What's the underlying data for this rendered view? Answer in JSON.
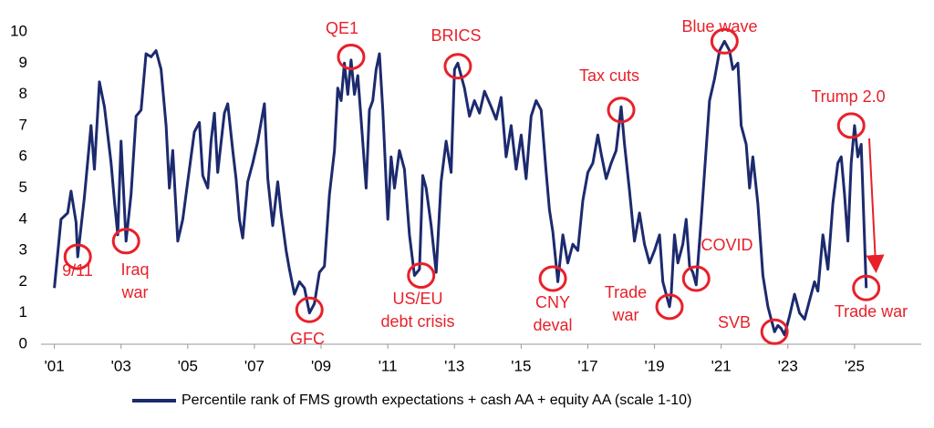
{
  "chart_data": {
    "type": "line",
    "x": [
      2001.0,
      2001.2,
      2001.4,
      2001.5,
      2001.65,
      2001.7,
      2001.9,
      2002.1,
      2002.2,
      2002.35,
      2002.5,
      2002.7,
      2002.8,
      2002.9,
      2003.0,
      2003.15,
      2003.3,
      2003.45,
      2003.6,
      2003.75,
      2003.9,
      2004.05,
      2004.2,
      2004.35,
      2004.45,
      2004.55,
      2004.7,
      2004.85,
      2005.0,
      2005.2,
      2005.35,
      2005.45,
      2005.6,
      2005.7,
      2005.8,
      2005.9,
      2006.1,
      2006.2,
      2006.35,
      2006.45,
      2006.55,
      2006.65,
      2006.8,
      2006.95,
      2007.1,
      2007.3,
      2007.4,
      2007.55,
      2007.7,
      2007.8,
      2007.95,
      2008.05,
      2008.2,
      2008.35,
      2008.5,
      2008.65,
      2008.8,
      2008.95,
      2009.1,
      2009.25,
      2009.4,
      2009.5,
      2009.6,
      2009.7,
      2009.8,
      2009.9,
      2010.0,
      2010.1,
      2010.2,
      2010.35,
      2010.45,
      2010.55,
      2010.65,
      2010.75,
      2010.85,
      2011.0,
      2011.1,
      2011.2,
      2011.35,
      2011.5,
      2011.65,
      2011.8,
      2011.95,
      2012.05,
      2012.15,
      2012.3,
      2012.45,
      2012.6,
      2012.75,
      2012.9,
      2013.0,
      2013.1,
      2013.3,
      2013.45,
      2013.6,
      2013.75,
      2013.9,
      2014.1,
      2014.25,
      2014.4,
      2014.55,
      2014.7,
      2014.85,
      2015.0,
      2015.15,
      2015.3,
      2015.45,
      2015.6,
      2015.75,
      2015.85,
      2015.95,
      2016.1,
      2016.25,
      2016.4,
      2016.55,
      2016.7,
      2016.85,
      2017.0,
      2017.15,
      2017.3,
      2017.4,
      2017.55,
      2017.7,
      2017.85,
      2018.0,
      2018.1,
      2018.25,
      2018.4,
      2018.55,
      2018.7,
      2018.85,
      2019.0,
      2019.15,
      2019.25,
      2019.45,
      2019.5,
      2019.6,
      2019.7,
      2019.85,
      2019.95,
      2020.05,
      2020.15,
      2020.25,
      2020.4,
      2020.5,
      2020.65,
      2020.8,
      2020.95,
      2021.1,
      2021.25,
      2021.35,
      2021.5,
      2021.6,
      2021.75,
      2021.85,
      2021.95,
      2022.1,
      2022.25,
      2022.4,
      2022.5,
      2022.6,
      2022.7,
      2022.8,
      2022.9,
      2023.05,
      2023.2,
      2023.35,
      2023.5,
      2023.65,
      2023.8,
      2023.9,
      2024.05,
      2024.2,
      2024.35,
      2024.5,
      2024.6,
      2024.7,
      2024.8,
      2024.9,
      2025.0,
      2025.1,
      2025.2,
      2025.35
    ],
    "series": [
      {
        "name": "Percentile rank of FMS growth expectations + cash AA + equity AA (scale 1-10)",
        "color": "#1c2a6e",
        "values": [
          1.8,
          4.0,
          4.2,
          4.9,
          3.9,
          2.8,
          4.7,
          7.0,
          5.6,
          8.4,
          7.6,
          5.8,
          4.6,
          3.5,
          6.5,
          3.3,
          4.8,
          7.3,
          7.5,
          9.3,
          9.2,
          9.4,
          8.8,
          7.0,
          5.0,
          6.2,
          3.3,
          4.0,
          5.2,
          6.8,
          7.1,
          5.4,
          5.0,
          6.5,
          7.4,
          5.5,
          7.4,
          7.7,
          6.2,
          5.3,
          4.0,
          3.4,
          5.2,
          5.8,
          6.5,
          7.7,
          5.3,
          3.8,
          5.2,
          4.2,
          3.0,
          2.4,
          1.6,
          2.0,
          1.8,
          1.0,
          1.3,
          2.3,
          2.5,
          4.8,
          6.2,
          8.2,
          7.8,
          9.0,
          8.0,
          9.1,
          8.0,
          8.6,
          7.2,
          5.0,
          7.5,
          7.8,
          8.8,
          9.3,
          7.5,
          4.0,
          6.0,
          5.0,
          6.2,
          5.6,
          3.5,
          2.2,
          2.4,
          5.4,
          5.0,
          3.8,
          2.3,
          5.2,
          6.5,
          5.5,
          8.8,
          9.0,
          8.2,
          7.3,
          7.8,
          7.4,
          8.1,
          7.6,
          7.2,
          7.9,
          6.0,
          7.0,
          5.6,
          6.7,
          5.3,
          7.3,
          7.8,
          7.5,
          5.5,
          4.3,
          3.6,
          2.0,
          3.5,
          2.6,
          3.2,
          3.0,
          4.6,
          5.5,
          5.8,
          6.7,
          6.1,
          5.3,
          5.8,
          6.2,
          7.6,
          6.4,
          4.9,
          3.3,
          4.2,
          3.2,
          2.6,
          3.0,
          3.5,
          2.0,
          1.2,
          1.6,
          3.5,
          2.6,
          3.2,
          4.0,
          2.5,
          2.3,
          1.9,
          4.0,
          5.5,
          7.8,
          8.5,
          9.4,
          9.7,
          9.4,
          8.8,
          9.0,
          7.0,
          6.4,
          5.0,
          6.0,
          4.5,
          2.2,
          1.2,
          0.8,
          0.4,
          0.6,
          0.5,
          0.3,
          0.9,
          1.6,
          1.0,
          0.8,
          1.4,
          2.0,
          1.7,
          3.5,
          2.4,
          4.5,
          5.8,
          6.0,
          4.8,
          3.3,
          5.8,
          7.0,
          6.0,
          6.4,
          1.8
        ]
      }
    ],
    "xlim": [
      2000.6,
      2027
    ],
    "xticks": [
      {
        "value": 2001,
        "label": "'01"
      },
      {
        "value": 2003,
        "label": "'03"
      },
      {
        "value": 2005,
        "label": "'05"
      },
      {
        "value": 2007,
        "label": "'07"
      },
      {
        "value": 2009,
        "label": "'09"
      },
      {
        "value": 2011,
        "label": "'11"
      },
      {
        "value": 2013,
        "label": "'13"
      },
      {
        "value": 2015,
        "label": "'15"
      },
      {
        "value": 2017,
        "label": "'17"
      },
      {
        "value": 2019,
        "label": "'19"
      },
      {
        "value": 2021,
        "label": "'21"
      },
      {
        "value": 2023,
        "label": "'23"
      },
      {
        "value": 2025,
        "label": "'25"
      }
    ],
    "ylim": [
      0,
      10
    ],
    "yticks": [
      0,
      1,
      2,
      3,
      4,
      5,
      6,
      7,
      8,
      9,
      10
    ],
    "grid": false,
    "legend": "bottom",
    "annotation_color": "#e8202a",
    "annotations": [
      {
        "lines": [
          "9/11"
        ],
        "x": 2001.7,
        "y": 2.8
      },
      {
        "lines": [
          "Iraq",
          "war"
        ],
        "x": 2003.15,
        "y": 3.3
      },
      {
        "lines": [
          "GFC"
        ],
        "x": 2008.65,
        "y": 1.1
      },
      {
        "lines": [
          "QE1"
        ],
        "x": 2009.9,
        "y": 9.2
      },
      {
        "lines": [
          "US/EU",
          "debt crisis"
        ],
        "x": 2012.0,
        "y": 2.2
      },
      {
        "lines": [
          "BRICS"
        ],
        "x": 2013.1,
        "y": 8.9
      },
      {
        "lines": [
          "CNY",
          "deval"
        ],
        "x": 2015.95,
        "y": 2.1
      },
      {
        "lines": [
          "Tax cuts"
        ],
        "x": 2018.0,
        "y": 7.5
      },
      {
        "lines": [
          "Trade",
          "war"
        ],
        "x": 2019.45,
        "y": 1.2
      },
      {
        "lines": [
          "COVID"
        ],
        "x": 2020.25,
        "y": 2.1
      },
      {
        "lines": [
          "Blue wave"
        ],
        "x": 2021.1,
        "y": 9.7
      },
      {
        "lines": [
          "SVB"
        ],
        "x": 2022.6,
        "y": 0.4
      },
      {
        "lines": [
          "Trump 2.0"
        ],
        "x": 2024.9,
        "y": 7.0
      },
      {
        "lines": [
          "Trade war"
        ],
        "x": 2025.35,
        "y": 1.8
      }
    ]
  }
}
